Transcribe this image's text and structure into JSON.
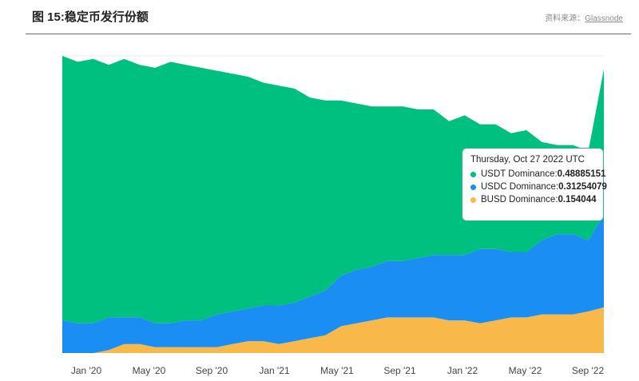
{
  "header": {
    "title": "图 15:稳定币发行份额",
    "source_prefix": "资料来源：",
    "source_name": "Glassnode"
  },
  "colors": {
    "usdt": "#00c07f",
    "usdc": "#1a8ef2",
    "busd": "#f8b84a"
  },
  "tooltip": {
    "date": "Thursday, Oct 27 2022 UTC",
    "rows": [
      {
        "label": "USDT Dominance: ",
        "value": "0.48885151",
        "color": "#00c07f"
      },
      {
        "label": "USDC Dominance: ",
        "value": "0.31254079",
        "color": "#1a8ef2"
      },
      {
        "label": "BUSD Dominance: ",
        "value": "0.154044",
        "color": "#f8b84a"
      }
    ]
  },
  "chart_data": {
    "type": "area",
    "stacked": true,
    "x_start": "2019-11",
    "x_end": "2022-10-27",
    "xticks": [
      "Jan '20",
      "May '20",
      "Sep '20",
      "Jan '21",
      "May '21",
      "Sep '21",
      "Jan '22",
      "May '22",
      "Sep '22"
    ],
    "ylim": [
      0,
      1
    ],
    "x": [
      "2019-11",
      "2019-12",
      "2020-01",
      "2020-02",
      "2020-03",
      "2020-04",
      "2020-05",
      "2020-06",
      "2020-07",
      "2020-08",
      "2020-09",
      "2020-10",
      "2020-11",
      "2020-12",
      "2021-01",
      "2021-02",
      "2021-03",
      "2021-04",
      "2021-05",
      "2021-06",
      "2021-07",
      "2021-08",
      "2021-09",
      "2021-10",
      "2021-11",
      "2021-12",
      "2022-01",
      "2022-02",
      "2022-03",
      "2022-04",
      "2022-05",
      "2022-06",
      "2022-07",
      "2022-08",
      "2022-09",
      "2022-10-27"
    ],
    "series": [
      {
        "key": "busd",
        "values": [
          0.0,
          0.0,
          0.0,
          0.01,
          0.03,
          0.03,
          0.02,
          0.02,
          0.02,
          0.02,
          0.02,
          0.03,
          0.04,
          0.04,
          0.03,
          0.04,
          0.05,
          0.06,
          0.09,
          0.1,
          0.11,
          0.12,
          0.12,
          0.12,
          0.12,
          0.11,
          0.11,
          0.1,
          0.11,
          0.12,
          0.12,
          0.13,
          0.13,
          0.13,
          0.14,
          0.154044
        ]
      },
      {
        "key": "usdc",
        "values": [
          0.11,
          0.1,
          0.1,
          0.11,
          0.09,
          0.09,
          0.08,
          0.08,
          0.09,
          0.09,
          0.11,
          0.11,
          0.11,
          0.12,
          0.13,
          0.13,
          0.14,
          0.15,
          0.17,
          0.18,
          0.18,
          0.19,
          0.19,
          0.2,
          0.21,
          0.22,
          0.22,
          0.25,
          0.24,
          0.22,
          0.22,
          0.25,
          0.27,
          0.27,
          0.24,
          0.31254079
        ]
      },
      {
        "key": "usdt",
        "values": [
          0.89,
          0.88,
          0.89,
          0.85,
          0.87,
          0.85,
          0.86,
          0.88,
          0.86,
          0.85,
          0.82,
          0.8,
          0.78,
          0.75,
          0.74,
          0.72,
          0.67,
          0.64,
          0.59,
          0.56,
          0.54,
          0.52,
          0.52,
          0.5,
          0.49,
          0.45,
          0.47,
          0.42,
          0.42,
          0.4,
          0.41,
          0.33,
          0.3,
          0.3,
          0.3,
          0.48885151
        ]
      }
    ],
    "grid": "y"
  }
}
